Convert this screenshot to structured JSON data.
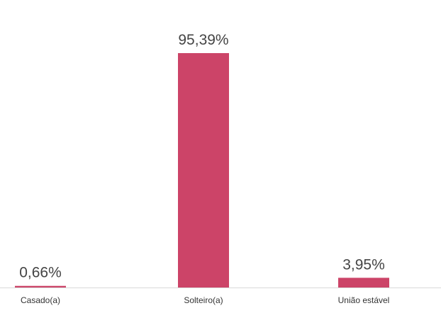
{
  "chart_data": {
    "type": "bar",
    "categories": [
      "Casado(a)",
      "Solteiro(a)",
      "União estável"
    ],
    "values": [
      0.66,
      95.39,
      3.95
    ],
    "data_labels": [
      "0,66%",
      "95,39%",
      "3,95%"
    ],
    "ylim": [
      0,
      100
    ],
    "grid": false,
    "legend": "none",
    "bar_color": "#cc4468",
    "baseline_color": "#d9d9d9",
    "label_color": "#444444"
  }
}
